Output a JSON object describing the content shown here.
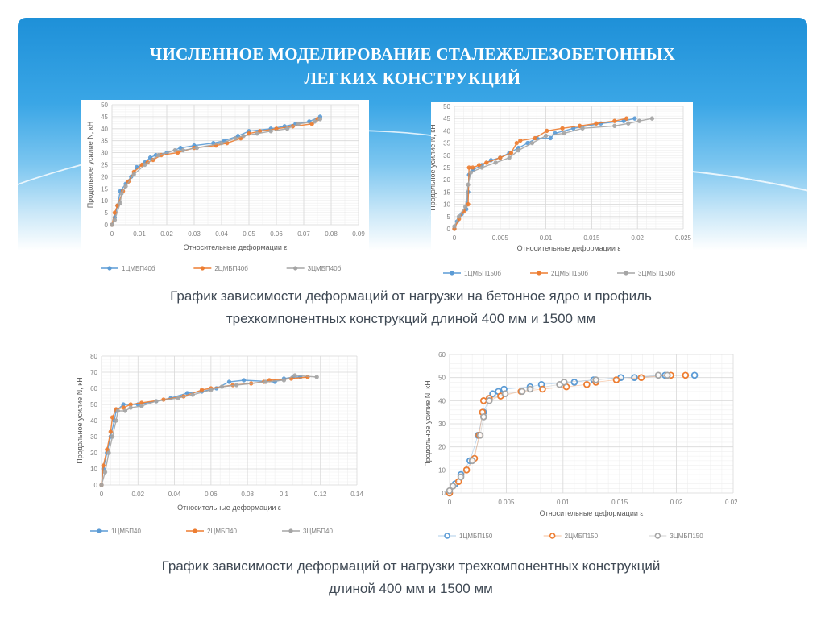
{
  "slide": {
    "title_line1": "ЧИСЛЕННОЕ МОДЕЛИРОВАНИЕ СТАЛЕЖЕЛЕЗОБЕТОННЫХ",
    "title_line2": "ЛЕГКИХ КОНСТРУКЦИЙ",
    "caption1_line1": "График зависимости деформаций от нагрузки на бетонное ядро и профиль",
    "caption1_line2": "трехкомпонентных конструкций длиной 400 мм и 1500 мм",
    "caption2_line1": "График зависимости деформаций от нагрузки трехкомпонентных конструкций",
    "caption2_line2": "длиной 400 мм и 1500 мм"
  },
  "colors": {
    "s1": "#5b9bd5",
    "s2": "#ed7d31",
    "s3": "#a5a5a5",
    "grid": "#d9d9d9",
    "minor": "#efefef",
    "tick": "#8c8c8c"
  },
  "chart_data": [
    {
      "type": "line",
      "xlabel": "Относительные деформации ε",
      "ylabel": "Продольное усилие N, кН",
      "xlim": [
        0,
        0.09
      ],
      "ylim": [
        0,
        50
      ],
      "xticks": [
        "0",
        "0.01",
        "0.02",
        "0.03",
        "0.04",
        "0.05",
        "0.06",
        "0.07",
        "0.08",
        "0.09"
      ],
      "yticks": [
        "0",
        "5",
        "10",
        "15",
        "20",
        "25",
        "30",
        "35",
        "40",
        "45",
        "50"
      ],
      "legend": "bottom",
      "series": [
        {
          "name": "1ЦМБП40б",
          "points": [
            [
              0,
              0
            ],
            [
              0.001,
              3
            ],
            [
              0.002,
              8
            ],
            [
              0.003,
              14
            ],
            [
              0.005,
              17
            ],
            [
              0.007,
              20
            ],
            [
              0.009,
              24
            ],
            [
              0.012,
              26
            ],
            [
              0.014,
              28
            ],
            [
              0.016,
              29
            ],
            [
              0.02,
              30
            ],
            [
              0.025,
              32
            ],
            [
              0.03,
              33
            ],
            [
              0.037,
              34
            ],
            [
              0.041,
              35
            ],
            [
              0.046,
              37
            ],
            [
              0.05,
              39
            ],
            [
              0.058,
              40
            ],
            [
              0.063,
              41
            ],
            [
              0.067,
              42
            ],
            [
              0.072,
              43
            ],
            [
              0.076,
              45
            ]
          ]
        },
        {
          "name": "2ЦМБП40б",
          "points": [
            [
              0,
              0
            ],
            [
              0.001,
              5
            ],
            [
              0.002,
              8
            ],
            [
              0.004,
              14
            ],
            [
              0.006,
              18
            ],
            [
              0.008,
              22
            ],
            [
              0.011,
              25
            ],
            [
              0.013,
              26
            ],
            [
              0.015,
              27
            ],
            [
              0.018,
              29
            ],
            [
              0.024,
              30
            ],
            [
              0.03,
              32
            ],
            [
              0.038,
              33
            ],
            [
              0.042,
              34
            ],
            [
              0.047,
              36
            ],
            [
              0.05,
              38
            ],
            [
              0.054,
              39
            ],
            [
              0.06,
              40
            ],
            [
              0.066,
              41
            ],
            [
              0.073,
              42
            ],
            [
              0.075,
              44
            ]
          ]
        },
        {
          "name": "3ЦМБП40б",
          "points": [
            [
              0,
              0
            ],
            [
              0.001,
              2
            ],
            [
              0.003,
              9
            ],
            [
              0.0035,
              13
            ],
            [
              0.005,
              16
            ],
            [
              0.008,
              21
            ],
            [
              0.012,
              25
            ],
            [
              0.017,
              29
            ],
            [
              0.023,
              31
            ],
            [
              0.026,
              31
            ],
            [
              0.031,
              32
            ],
            [
              0.04,
              34
            ],
            [
              0.045,
              36
            ],
            [
              0.048,
              37
            ],
            [
              0.053,
              38
            ],
            [
              0.058,
              39
            ],
            [
              0.064,
              40
            ],
            [
              0.068,
              42
            ],
            [
              0.074,
              43
            ],
            [
              0.076,
              44
            ]
          ]
        }
      ]
    },
    {
      "type": "line",
      "xlabel": "Относительные деформации ε",
      "ylabel": "Продольное усилие N, кН",
      "xlim": [
        0,
        0.025
      ],
      "ylim": [
        0,
        50
      ],
      "xticks": [
        "0",
        "0.005",
        "0.01",
        "0.015",
        "0.02",
        "0.025"
      ],
      "yticks": [
        "0",
        "5",
        "10",
        "15",
        "20",
        "25",
        "30",
        "35",
        "40",
        "45",
        "50"
      ],
      "legend": "bottom",
      "series": [
        {
          "name": "1ЦМБП150б",
          "points": [
            [
              0,
              0
            ],
            [
              0.0003,
              3
            ],
            [
              0.0008,
              6
            ],
            [
              0.0013,
              8
            ],
            [
              0.0015,
              15
            ],
            [
              0.0016,
              22
            ],
            [
              0.002,
              24
            ],
            [
              0.003,
              26
            ],
            [
              0.004,
              28
            ],
            [
              0.005,
              29
            ],
            [
              0.006,
              31
            ],
            [
              0.007,
              33
            ],
            [
              0.008,
              35
            ],
            [
              0.009,
              37
            ],
            [
              0.0105,
              37
            ],
            [
              0.011,
              39
            ],
            [
              0.013,
              41
            ],
            [
              0.016,
              43
            ],
            [
              0.0185,
              44
            ],
            [
              0.0197,
              45
            ]
          ]
        },
        {
          "name": "2ЦМБП150б",
          "points": [
            [
              0,
              0
            ],
            [
              0.0005,
              4
            ],
            [
              0.001,
              7
            ],
            [
              0.0015,
              10
            ],
            [
              0.0016,
              25
            ],
            [
              0.002,
              25
            ],
            [
              0.0027,
              26
            ],
            [
              0.0035,
              27
            ],
            [
              0.005,
              29
            ],
            [
              0.0062,
              31
            ],
            [
              0.0068,
              35
            ],
            [
              0.0072,
              36
            ],
            [
              0.0088,
              37
            ],
            [
              0.0101,
              40
            ],
            [
              0.0118,
              41
            ],
            [
              0.0137,
              42
            ],
            [
              0.0155,
              43
            ],
            [
              0.0175,
              44
            ],
            [
              0.0188,
              45
            ]
          ]
        },
        {
          "name": "3ЦМБП150б",
          "points": [
            [
              0,
              1
            ],
            [
              0.0005,
              5
            ],
            [
              0.0012,
              9
            ],
            [
              0.0015,
              18
            ],
            [
              0.0018,
              23
            ],
            [
              0.003,
              25
            ],
            [
              0.0045,
              27
            ],
            [
              0.006,
              29
            ],
            [
              0.007,
              32
            ],
            [
              0.0085,
              35
            ],
            [
              0.01,
              38
            ],
            [
              0.012,
              39
            ],
            [
              0.014,
              41
            ],
            [
              0.0175,
              42
            ],
            [
              0.019,
              43
            ],
            [
              0.0202,
              44
            ],
            [
              0.0216,
              45
            ]
          ]
        }
      ]
    },
    {
      "type": "line",
      "xlabel": "Относительные деформации ε",
      "ylabel": "Продольное усилие N, кН",
      "xlim": [
        0,
        0.14
      ],
      "ylim": [
        0,
        80
      ],
      "xticks": [
        "0",
        "0.02",
        "0.04",
        "0.06",
        "0.08",
        "0.1",
        "0.12",
        "0.14"
      ],
      "yticks": [
        "0",
        "10",
        "20",
        "30",
        "40",
        "50",
        "60",
        "70",
        "80"
      ],
      "legend": "bottom",
      "series": [
        {
          "name": "1ЦМБП40",
          "points": [
            [
              0,
              0
            ],
            [
              0.001,
              10
            ],
            [
              0.003,
              20
            ],
            [
              0.005,
              30
            ],
            [
              0.007,
              40
            ],
            [
              0.008,
              46
            ],
            [
              0.012,
              50
            ],
            [
              0.02,
              50
            ],
            [
              0.03,
              52
            ],
            [
              0.038,
              54
            ],
            [
              0.047,
              57
            ],
            [
              0.055,
              58
            ],
            [
              0.063,
              60
            ],
            [
              0.07,
              64
            ],
            [
              0.078,
              65
            ],
            [
              0.095,
              64
            ],
            [
              0.1,
              66
            ],
            [
              0.105,
              67
            ],
            [
              0.109,
              67
            ]
          ]
        },
        {
          "name": "2ЦМБП40",
          "points": [
            [
              0,
              0
            ],
            [
              0.001,
              12
            ],
            [
              0.003,
              22
            ],
            [
              0.005,
              33
            ],
            [
              0.006,
              42
            ],
            [
              0.008,
              47
            ],
            [
              0.012,
              48
            ],
            [
              0.016,
              50
            ],
            [
              0.022,
              51
            ],
            [
              0.034,
              53
            ],
            [
              0.045,
              55
            ],
            [
              0.055,
              59
            ],
            [
              0.06,
              60
            ],
            [
              0.072,
              62
            ],
            [
              0.082,
              63
            ],
            [
              0.089,
              64
            ],
            [
              0.092,
              65
            ],
            [
              0.104,
              66
            ],
            [
              0.113,
              67
            ]
          ]
        },
        {
          "name": "3ЦМБП40",
          "points": [
            [
              0,
              0
            ],
            [
              0.002,
              8
            ],
            [
              0.004,
              20
            ],
            [
              0.006,
              30
            ],
            [
              0.008,
              40
            ],
            [
              0.009,
              46
            ],
            [
              0.013,
              46
            ],
            [
              0.016,
              48
            ],
            [
              0.022,
              49
            ],
            [
              0.03,
              52
            ],
            [
              0.042,
              54
            ],
            [
              0.05,
              56
            ],
            [
              0.06,
              59
            ],
            [
              0.066,
              61
            ],
            [
              0.074,
              62
            ],
            [
              0.09,
              64
            ],
            [
              0.1,
              65
            ],
            [
              0.106,
              68
            ],
            [
              0.118,
              67
            ]
          ]
        }
      ]
    },
    {
      "type": "line",
      "xlabel": "Относительные деформации ε",
      "ylabel": "Продольное усилие N, кН",
      "xlim": [
        0,
        0.025
      ],
      "ylim": [
        0,
        60
      ],
      "xticks": [
        "0",
        "0.005",
        "0.01",
        "0.015",
        "0.02",
        "0.025"
      ],
      "yticks": [
        "0",
        "10",
        "20",
        "30",
        "40",
        "50",
        "60"
      ],
      "legend": "bottom",
      "series": [
        {
          "name": "1ЦМБП150",
          "points": [
            [
              0,
              0
            ],
            [
              0.0005,
              4
            ],
            [
              0.001,
              8
            ],
            [
              0.0018,
              14
            ],
            [
              0.0025,
              25
            ],
            [
              0.003,
              35
            ],
            [
              0.0035,
              41
            ],
            [
              0.0038,
              43
            ],
            [
              0.0043,
              44
            ],
            [
              0.0048,
              45
            ],
            [
              0.0071,
              46
            ],
            [
              0.0081,
              47
            ],
            [
              0.011,
              48
            ],
            [
              0.0127,
              49
            ],
            [
              0.0151,
              50
            ],
            [
              0.0163,
              50
            ],
            [
              0.019,
              51
            ],
            [
              0.0216,
              51
            ]
          ]
        },
        {
          "name": "2ЦМБП150",
          "points": [
            [
              0,
              0
            ],
            [
              0.0008,
              5
            ],
            [
              0.0015,
              10
            ],
            [
              0.0022,
              15
            ],
            [
              0.0026,
              25
            ],
            [
              0.0029,
              35
            ],
            [
              0.003,
              40
            ],
            [
              0.0035,
              41
            ],
            [
              0.0045,
              42
            ],
            [
              0.0063,
              44
            ],
            [
              0.0082,
              45
            ],
            [
              0.0103,
              46
            ],
            [
              0.0121,
              47
            ],
            [
              0.0129,
              48
            ],
            [
              0.0147,
              49
            ],
            [
              0.0169,
              50
            ],
            [
              0.0195,
              51
            ],
            [
              0.0208,
              51
            ]
          ]
        },
        {
          "name": "3ЦМБП150",
          "points": [
            [
              0,
              1
            ],
            [
              0.0003,
              3
            ],
            [
              0.001,
              7
            ],
            [
              0.002,
              14
            ],
            [
              0.0027,
              25
            ],
            [
              0.003,
              33
            ],
            [
              0.0035,
              40
            ],
            [
              0.0049,
              43
            ],
            [
              0.0064,
              44
            ],
            [
              0.0071,
              45
            ],
            [
              0.0097,
              47
            ],
            [
              0.0101,
              48
            ],
            [
              0.0129,
              49
            ],
            [
              0.0184,
              51
            ],
            [
              0.0192,
              51
            ]
          ]
        }
      ]
    }
  ]
}
